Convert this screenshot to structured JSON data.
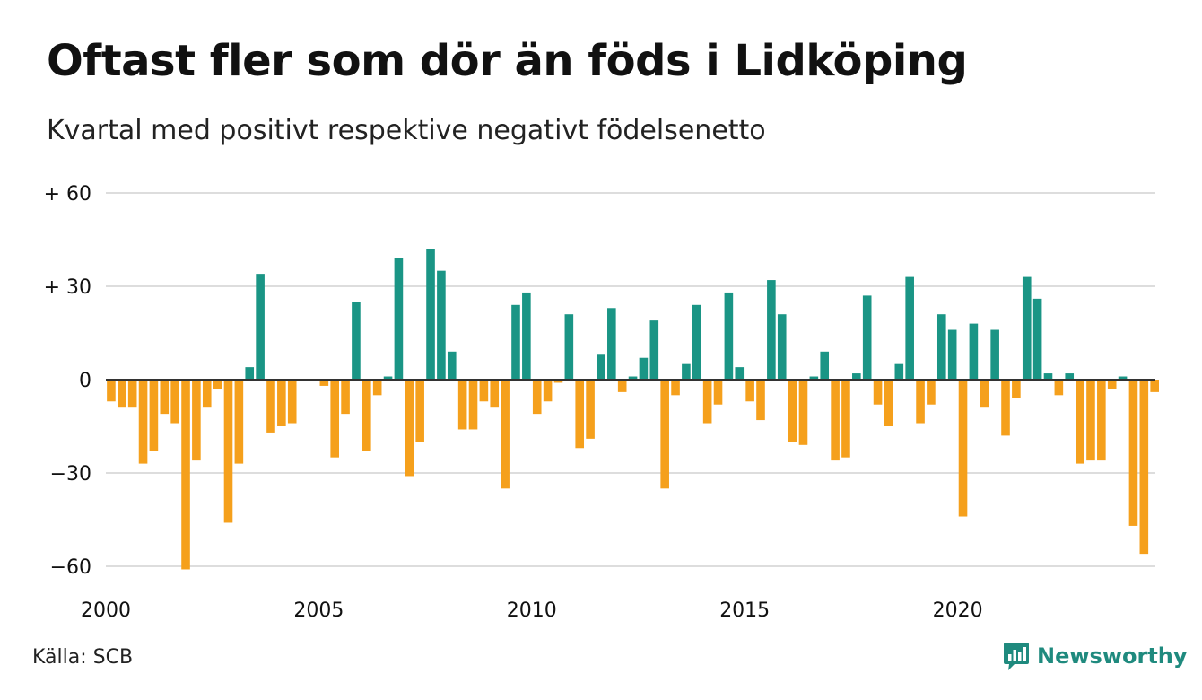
{
  "title": "Oftast fler som dör än föds i Lidköping",
  "subtitle": "Kvartal med positivt respektive negativt födelsenetto",
  "source": "Källa: SCB",
  "logo": {
    "text": "Newsworthy",
    "icon": "newsworthy-chart-bubble-icon",
    "color": "#1f8a7e"
  },
  "colors": {
    "positive": "#1a9585",
    "negative": "#f5a01c",
    "grid": "#dddddd",
    "zero_line": "#333333"
  },
  "chart_data": {
    "type": "bar",
    "x_start": 2000,
    "period": "quarter",
    "ylim": [
      -65,
      62
    ],
    "yticks": [
      {
        "value": 60,
        "label": "+ 60"
      },
      {
        "value": 30,
        "label": "+ 30"
      },
      {
        "value": 0,
        "label": "0"
      },
      {
        "value": -30,
        "label": "−30"
      },
      {
        "value": -60,
        "label": "−60"
      }
    ],
    "xticks": [
      {
        "value": 2000,
        "label": "2000"
      },
      {
        "value": 2005,
        "label": "2005"
      },
      {
        "value": 2010,
        "label": "2010"
      },
      {
        "value": 2015,
        "label": "2015"
      },
      {
        "value": 2020,
        "label": "2020"
      }
    ],
    "grid": true,
    "legend": false,
    "values": [
      -7,
      -9,
      -9,
      -27,
      -23,
      -11,
      -14,
      -61,
      -26,
      -9,
      -3,
      -46,
      -27,
      4,
      34,
      -17,
      -15,
      -14,
      0,
      0,
      -2,
      -25,
      -11,
      25,
      -23,
      -5,
      1,
      39,
      -31,
      -20,
      42,
      35,
      9,
      -16,
      -16,
      -7,
      -9,
      -35,
      24,
      28,
      -11,
      -7,
      -1,
      21,
      -22,
      -19,
      8,
      23,
      -4,
      1,
      7,
      19,
      -35,
      -5,
      5,
      24,
      -14,
      -8,
      28,
      4,
      -7,
      -13,
      32,
      21,
      -20,
      -21,
      1,
      9,
      -26,
      -25,
      2,
      27,
      -8,
      -15,
      5,
      33,
      -14,
      -8,
      21,
      16,
      -44,
      18,
      -9,
      16,
      -18,
      -6,
      33,
      26,
      2,
      -5,
      2,
      -27,
      -26,
      -26,
      -3,
      1,
      -47,
      -56,
      -4
    ]
  }
}
